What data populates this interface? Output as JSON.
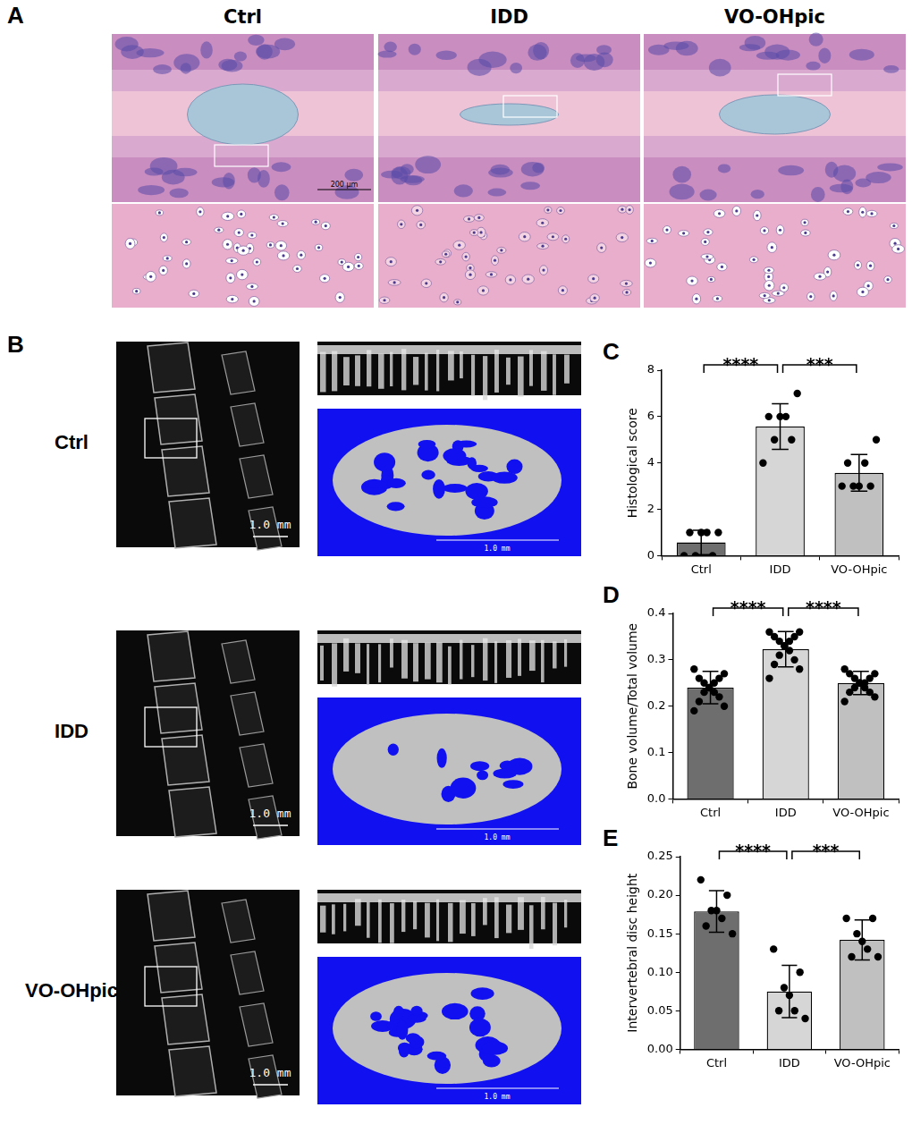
{
  "figure": {
    "panel_A": {
      "label": "A",
      "columns": [
        "Ctrl",
        "IDD",
        "VO-OHpic"
      ],
      "scale_bar": "200 μm"
    },
    "panel_B": {
      "label": "B",
      "rows": [
        "Ctrl",
        "IDD",
        "VO-OHpic"
      ],
      "scale_bar": "1.0 mm"
    },
    "chart_panels": [
      "C",
      "D",
      "E"
    ]
  },
  "chart_data": [
    {
      "type": "bar",
      "ylabel": "Histological score",
      "categories": [
        "Ctrl",
        "IDD",
        "VO-OHpic"
      ],
      "values": [
        0.57,
        5.57,
        3.57
      ],
      "error": [
        0.53,
        0.98,
        0.79
      ],
      "points": [
        [
          0,
          0,
          0,
          1,
          1,
          1,
          1
        ],
        [
          4,
          5,
          5,
          6,
          6,
          6,
          7
        ],
        [
          3,
          3,
          3,
          3,
          4,
          4,
          5
        ]
      ],
      "colors": [
        "#6e6e6e",
        "#d6d6d6",
        "#c0c0c0"
      ],
      "ylim": [
        0,
        8
      ],
      "yticks": [
        0,
        2,
        4,
        6,
        8
      ],
      "grid": false,
      "significance": [
        {
          "from": "Ctrl",
          "to": "IDD",
          "label": "****"
        },
        {
          "from": "IDD",
          "to": "VO-OHpic",
          "label": "***"
        }
      ]
    },
    {
      "type": "bar",
      "ylabel": "Bone volume/Total volume",
      "categories": [
        "Ctrl",
        "IDD",
        "VO-OHpic"
      ],
      "values": [
        0.24,
        0.323,
        0.25
      ],
      "error": [
        0.035,
        0.038,
        0.025
      ],
      "points": [
        [
          0.28,
          0.27,
          0.26,
          0.26,
          0.25,
          0.25,
          0.24,
          0.24,
          0.23,
          0.23,
          0.22,
          0.21,
          0.2,
          0.19
        ],
        [
          0.36,
          0.36,
          0.35,
          0.35,
          0.34,
          0.34,
          0.33,
          0.33,
          0.32,
          0.31,
          0.3,
          0.29,
          0.28,
          0.26
        ],
        [
          0.28,
          0.27,
          0.27,
          0.26,
          0.26,
          0.25,
          0.25,
          0.25,
          0.24,
          0.24,
          0.23,
          0.23,
          0.22,
          0.21
        ]
      ],
      "colors": [
        "#6e6e6e",
        "#d6d6d6",
        "#c0c0c0"
      ],
      "ylim": [
        0,
        0.4
      ],
      "yticks": [
        {
          "value": 0,
          "label": "0.0"
        },
        0.1,
        0.2,
        0.3,
        0.4
      ],
      "grid": false,
      "significance": [
        {
          "from": "Ctrl",
          "to": "IDD",
          "label": "****"
        },
        {
          "from": "IDD",
          "to": "VO-OHpic",
          "label": "****"
        }
      ]
    },
    {
      "type": "bar",
      "ylabel": "Intervertebral disc height",
      "categories": [
        "Ctrl",
        "IDD",
        "VO-OHpic"
      ],
      "values": [
        0.179,
        0.075,
        0.142
      ],
      "error": [
        0.027,
        0.034,
        0.026
      ],
      "points": [
        [
          0.22,
          0.2,
          0.18,
          0.18,
          0.17,
          0.16,
          0.15
        ],
        [
          0.13,
          0.1,
          0.08,
          0.07,
          0.05,
          0.05,
          0.04
        ],
        [
          0.17,
          0.17,
          0.15,
          0.14,
          0.13,
          0.12,
          0.12
        ]
      ],
      "colors": [
        "#6e6e6e",
        "#d6d6d6",
        "#c0c0c0"
      ],
      "ylim": [
        0,
        0.25
      ],
      "yticks": [
        {
          "value": 0,
          "label": "0.00"
        },
        0.05,
        {
          "value": 0.1,
          "label": "0.10"
        },
        0.15,
        {
          "value": 0.2,
          "label": "0.20"
        },
        0.25
      ],
      "grid": false,
      "significance": [
        {
          "from": "Ctrl",
          "to": "IDD",
          "label": "****"
        },
        {
          "from": "IDD",
          "to": "VO-OHpic",
          "label": "***"
        }
      ]
    }
  ]
}
